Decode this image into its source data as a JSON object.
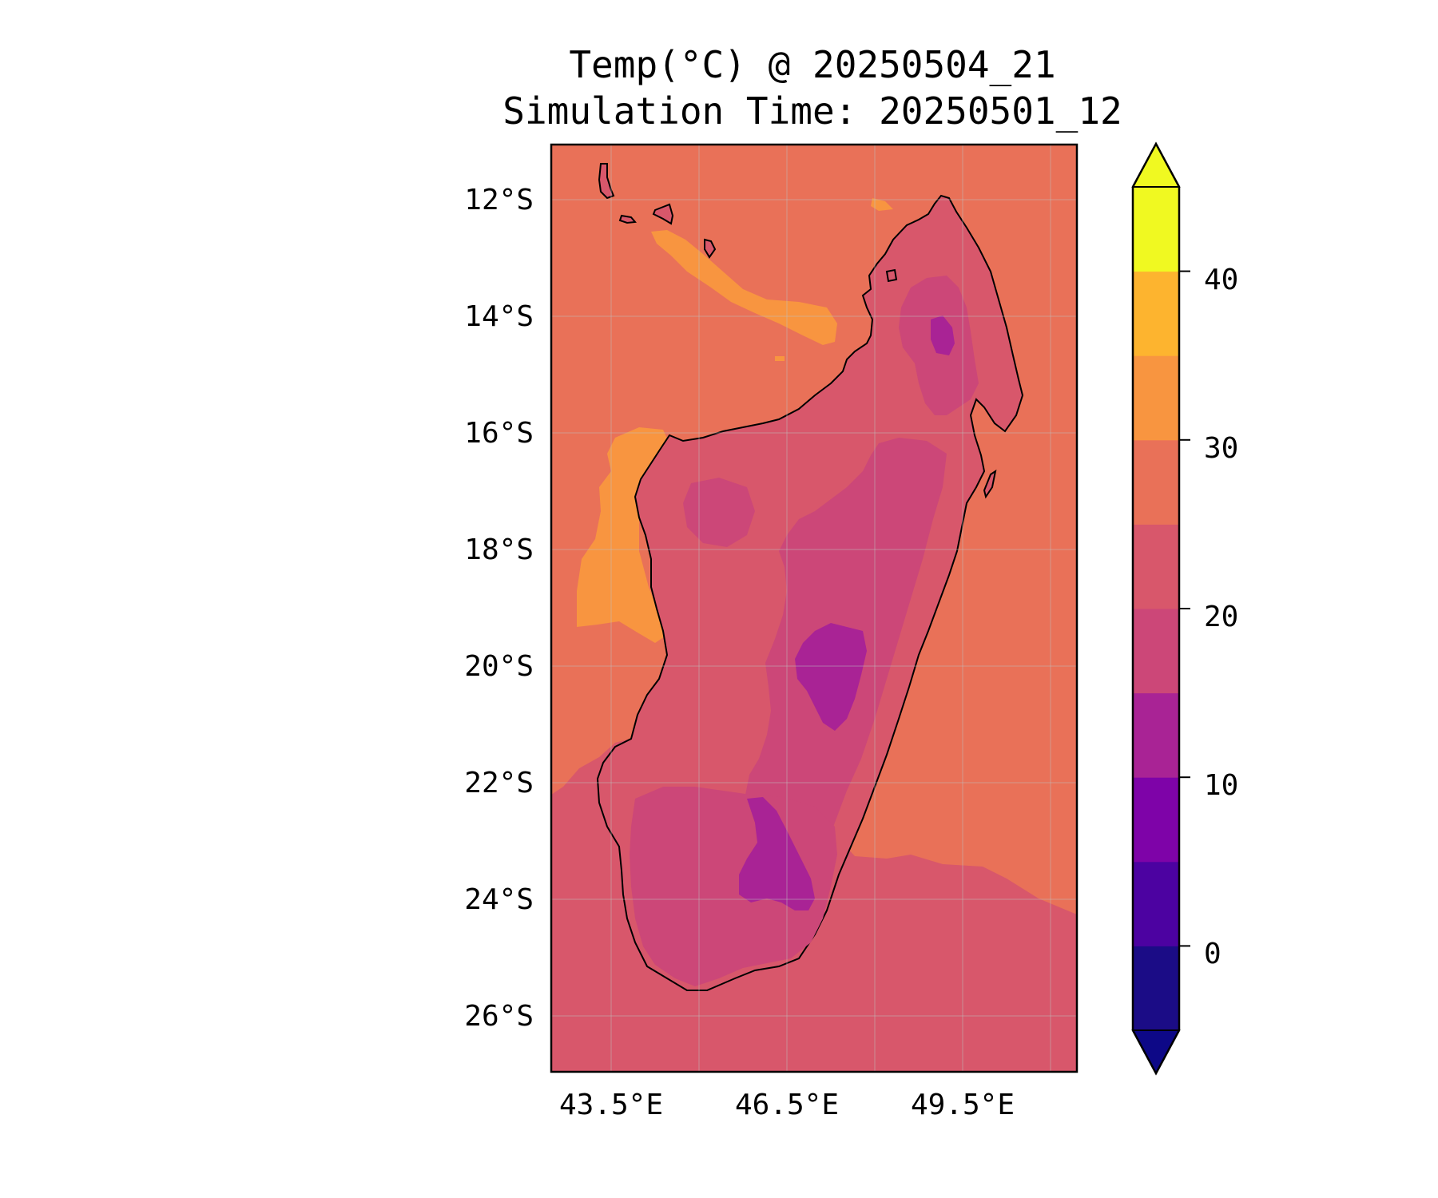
{
  "title": {
    "line1": "Temp(°C) @ 20250504_21",
    "line2": "Simulation Time: 20250501_12"
  },
  "map": {
    "region": "Madagascar",
    "lon_range": [
      42.5,
      51.5
    ],
    "lat_range": [
      -27.0,
      -11.0
    ],
    "x_ticks": [
      "43.5°E",
      "46.5°E",
      "49.5°E"
    ],
    "y_ticks": [
      "12°S",
      "14°S",
      "16°S",
      "18°S",
      "20°S",
      "22°S",
      "24°S",
      "26°S"
    ],
    "gridlines": true,
    "background_level": "25–30 °C (ocean north/east)",
    "southern_ocean_level": "20–25 °C"
  },
  "colorbar": {
    "ticks": [
      "0",
      "10",
      "20",
      "30",
      "40"
    ],
    "extend": "both",
    "levels": [
      -5,
      0,
      5,
      10,
      15,
      20,
      25,
      30,
      35,
      40,
      45
    ],
    "colors": [
      "#1b0c86",
      "#4c02a1",
      "#7e03a8",
      "#a92395",
      "#cc4778",
      "#d8576b",
      "#e97158",
      "#f89540",
      "#fdb42f",
      "#f0f921"
    ],
    "under_color": "#0d0887",
    "over_color": "#f0f921"
  },
  "chart_data": {
    "type": "heatmap",
    "title": "Temp(°C) @ 20250504_21\nSimulation Time: 20250501_12",
    "xlabel": "",
    "ylabel": "",
    "x_ticks": [
      "43.5°E",
      "46.5°E",
      "49.5°E"
    ],
    "y_ticks": [
      "12°S",
      "14°S",
      "16°S",
      "18°S",
      "20°S",
      "22°S",
      "24°S",
      "26°S"
    ],
    "colorbar_ticks": [
      0,
      10,
      20,
      30,
      40
    ],
    "value_range_shown": [
      10,
      35
    ],
    "regions": [
      {
        "area": "open ocean north and east",
        "temp_range_c": [
          25,
          30
        ]
      },
      {
        "area": "ocean south of ~22–24°S",
        "temp_range_c": [
          20,
          25
        ]
      },
      {
        "area": "Mozambique channel pockets near 13°S and 17–19°S",
        "temp_range_c": [
          30,
          35
        ]
      },
      {
        "area": "Madagascar coastal lowlands",
        "temp_range_c": [
          20,
          25
        ]
      },
      {
        "area": "central and southern highlands",
        "temp_range_c": [
          15,
          20
        ]
      },
      {
        "area": "highest terrain near 14.5°S, 19.5–21°S, 23–24°S",
        "temp_range_c": [
          10,
          15
        ]
      }
    ]
  }
}
